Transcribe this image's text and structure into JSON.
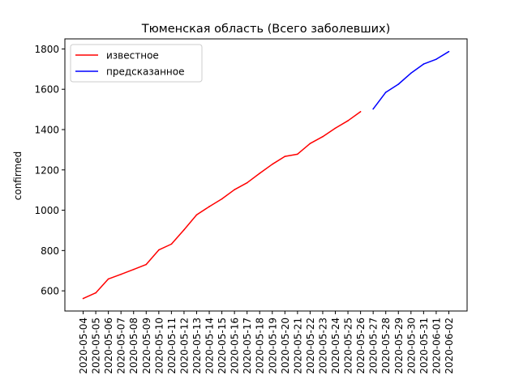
{
  "chart_data": {
    "type": "line",
    "title": "Тюменская область (Всего заболевших)",
    "xlabel": "",
    "ylabel": "confirmed",
    "ylim": [
      500,
      1850
    ],
    "yticks": [
      600,
      800,
      1000,
      1200,
      1400,
      1600,
      1800
    ],
    "grid": false,
    "legend_position": "top-left",
    "x": [
      "2020-05-04",
      "2020-05-05",
      "2020-05-06",
      "2020-05-07",
      "2020-05-08",
      "2020-05-09",
      "2020-05-10",
      "2020-05-11",
      "2020-05-12",
      "2020-05-13",
      "2020-05-14",
      "2020-05-15",
      "2020-05-16",
      "2020-05-17",
      "2020-05-18",
      "2020-05-19",
      "2020-05-20",
      "2020-05-21",
      "2020-05-22",
      "2020-05-23",
      "2020-05-24",
      "2020-05-25",
      "2020-05-26",
      "2020-05-27",
      "2020-05-28",
      "2020-05-29",
      "2020-05-30",
      "2020-05-31",
      "2020-06-01",
      "2020-06-02"
    ],
    "series": [
      {
        "name": "известное",
        "color": "#ff0000",
        "x": [
          "2020-05-04",
          "2020-05-05",
          "2020-05-06",
          "2020-05-07",
          "2020-05-08",
          "2020-05-09",
          "2020-05-10",
          "2020-05-11",
          "2020-05-12",
          "2020-05-13",
          "2020-05-14",
          "2020-05-15",
          "2020-05-16",
          "2020-05-17",
          "2020-05-18",
          "2020-05-19",
          "2020-05-20",
          "2020-05-21",
          "2020-05-22",
          "2020-05-23",
          "2020-05-24",
          "2020-05-25",
          "2020-05-26"
        ],
        "values": [
          562,
          590,
          659,
          682,
          706,
          731,
          803,
          832,
          903,
          977,
          1018,
          1056,
          1102,
          1136,
          1183,
          1228,
          1267,
          1278,
          1331,
          1365,
          1407,
          1444,
          1489
        ]
      },
      {
        "name": "предсказанное",
        "color": "#0000ff",
        "x": [
          "2020-05-27",
          "2020-05-28",
          "2020-05-29",
          "2020-05-30",
          "2020-05-31",
          "2020-06-01",
          "2020-06-02"
        ],
        "values": [
          1502,
          1585,
          1625,
          1680,
          1725,
          1749,
          1787
        ]
      }
    ]
  }
}
